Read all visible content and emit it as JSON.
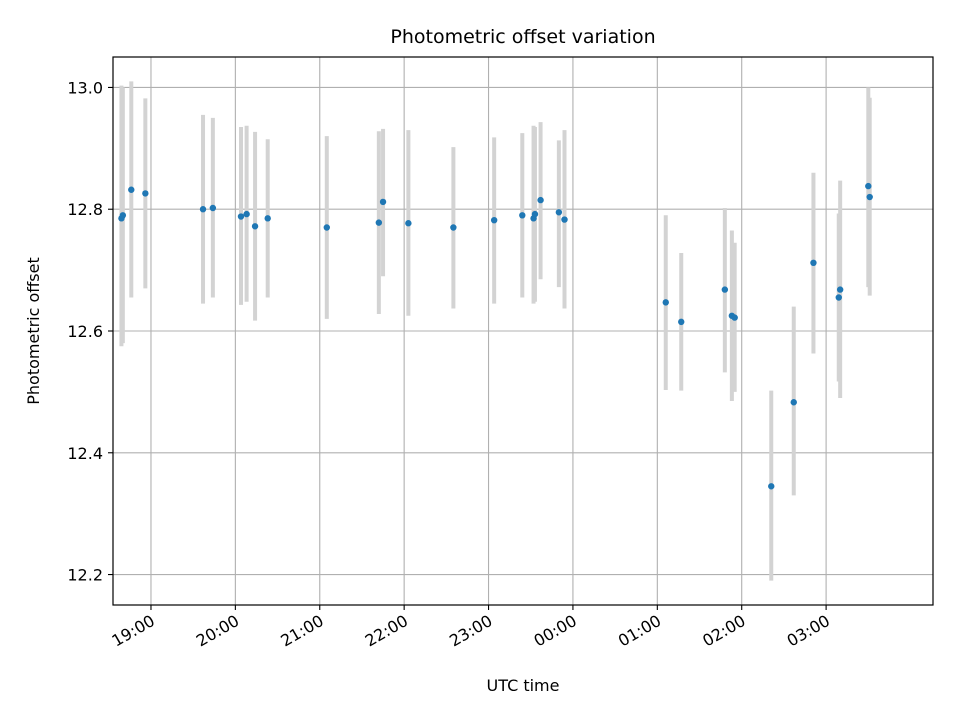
{
  "chart_data": {
    "type": "scatter",
    "title": "Photometric offset variation",
    "xlabel": "UTC time",
    "ylabel": "Photometric offset",
    "x_tick_labels": [
      "19:00",
      "20:00",
      "21:00",
      "22:00",
      "23:00",
      "00:00",
      "01:00",
      "02:00",
      "03:00"
    ],
    "y_tick_labels": [
      "12.2",
      "12.4",
      "12.6",
      "12.8",
      "13.0"
    ],
    "x_ticks": [
      "19:00",
      "20:00",
      "21:00",
      "22:00",
      "23:00",
      "00:00",
      "01:00",
      "02:00",
      "03:00"
    ],
    "y_ticks": [
      12.2,
      12.4,
      12.6,
      12.8,
      13.0
    ],
    "xlim": [
      "18:33",
      "04:16"
    ],
    "ylim": [
      12.15,
      13.05
    ],
    "grid": true,
    "colors": {
      "point": "#1f77b4",
      "errorbar": "#d3d3d3",
      "grid": "#b0b0b0"
    },
    "points": [
      {
        "t": "18:39",
        "y": 12.785,
        "err_low": 12.575,
        "err_high": 13.003
      },
      {
        "t": "18:40",
        "y": 12.79,
        "err_low": 12.58,
        "err_high": 13.0
      },
      {
        "t": "18:46",
        "y": 12.832,
        "err_low": 12.655,
        "err_high": 13.01
      },
      {
        "t": "18:56",
        "y": 12.826,
        "err_low": 12.67,
        "err_high": 12.982
      },
      {
        "t": "19:37",
        "y": 12.8,
        "err_low": 12.645,
        "err_high": 12.955
      },
      {
        "t": "19:44",
        "y": 12.802,
        "err_low": 12.655,
        "err_high": 12.95
      },
      {
        "t": "20:04",
        "y": 12.788,
        "err_low": 12.643,
        "err_high": 12.935
      },
      {
        "t": "20:08",
        "y": 12.792,
        "err_low": 12.648,
        "err_high": 12.937
      },
      {
        "t": "20:14",
        "y": 12.772,
        "err_low": 12.617,
        "err_high": 12.927
      },
      {
        "t": "20:23",
        "y": 12.785,
        "err_low": 12.655,
        "err_high": 12.915
      },
      {
        "t": "21:05",
        "y": 12.77,
        "err_low": 12.62,
        "err_high": 12.92
      },
      {
        "t": "21:42",
        "y": 12.778,
        "err_low": 12.628,
        "err_high": 12.928
      },
      {
        "t": "21:45",
        "y": 12.812,
        "err_low": 12.69,
        "err_high": 12.932
      },
      {
        "t": "22:03",
        "y": 12.777,
        "err_low": 12.625,
        "err_high": 12.93
      },
      {
        "t": "22:35",
        "y": 12.77,
        "err_low": 12.637,
        "err_high": 12.902
      },
      {
        "t": "23:04",
        "y": 12.782,
        "err_low": 12.645,
        "err_high": 12.918
      },
      {
        "t": "23:24",
        "y": 12.79,
        "err_low": 12.655,
        "err_high": 12.925
      },
      {
        "t": "23:32",
        "y": 12.785,
        "err_low": 12.645,
        "err_high": 12.937
      },
      {
        "t": "23:33",
        "y": 12.792,
        "err_low": 12.648,
        "err_high": 12.935
      },
      {
        "t": "23:37",
        "y": 12.815,
        "err_low": 12.685,
        "err_high": 12.943
      },
      {
        "t": "23:50",
        "y": 12.795,
        "err_low": 12.672,
        "err_high": 12.913
      },
      {
        "t": "23:54",
        "y": 12.783,
        "err_low": 12.637,
        "err_high": 12.93
      },
      {
        "t": "01:06",
        "y": 12.647,
        "err_low": 12.503,
        "err_high": 12.79
      },
      {
        "t": "01:17",
        "y": 12.615,
        "err_low": 12.502,
        "err_high": 12.728
      },
      {
        "t": "01:48",
        "y": 12.668,
        "err_low": 12.532,
        "err_high": 12.802
      },
      {
        "t": "01:53",
        "y": 12.625,
        "err_low": 12.485,
        "err_high": 12.765
      },
      {
        "t": "01:55",
        "y": 12.622,
        "err_low": 12.5,
        "err_high": 12.745
      },
      {
        "t": "02:21",
        "y": 12.345,
        "err_low": 12.19,
        "err_high": 12.502
      },
      {
        "t": "02:37",
        "y": 12.483,
        "err_low": 12.33,
        "err_high": 12.64
      },
      {
        "t": "02:51",
        "y": 12.712,
        "err_low": 12.563,
        "err_high": 12.86
      },
      {
        "t": "03:09",
        "y": 12.655,
        "err_low": 12.517,
        "err_high": 12.793
      },
      {
        "t": "03:10",
        "y": 12.668,
        "err_low": 12.49,
        "err_high": 12.847
      },
      {
        "t": "03:30",
        "y": 12.838,
        "err_low": 12.672,
        "err_high": 13.0
      },
      {
        "t": "03:31",
        "y": 12.82,
        "err_low": 12.658,
        "err_high": 12.983
      }
    ]
  }
}
